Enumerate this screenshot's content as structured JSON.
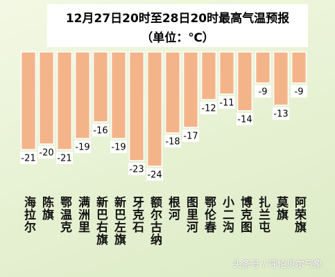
{
  "chart_data": {
    "type": "bar",
    "title": "12月27日20时至28日20时最高气温预报",
    "subtitle": "（单位：℃）",
    "categories": [
      "海拉尔",
      "陈旗",
      "鄂温克",
      "满洲里",
      "新巴右旗",
      "新巴左旗",
      "牙克石",
      "额尔古纳",
      "根河",
      "图里河",
      "鄂伦春",
      "小二沟",
      "博克图",
      "扎兰屯",
      "莫旗",
      "阿荣旗"
    ],
    "values": [
      -21,
      -20,
      -21,
      -19,
      -16,
      -19,
      -23,
      -24,
      -18,
      -17,
      -12,
      -11,
      -14,
      -9,
      -13,
      -9
    ],
    "color": "#f4b48a",
    "ylim": [
      -3.4,
      -25
    ]
  },
  "watermark": "头条号 / 呼伦贝尔气象"
}
